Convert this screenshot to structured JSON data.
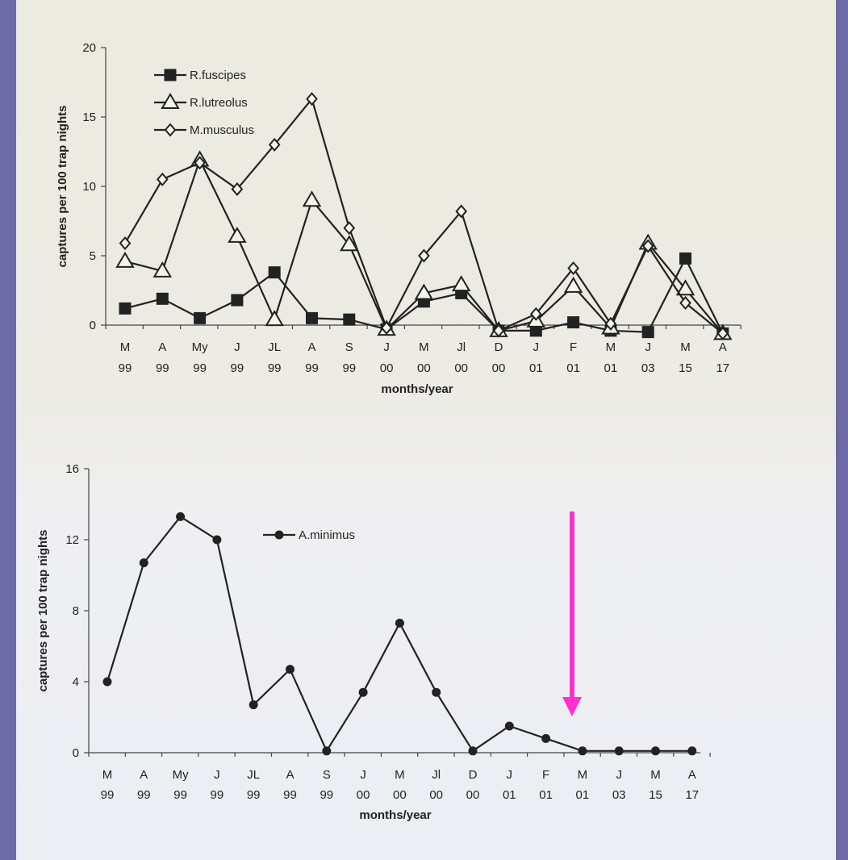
{
  "chart_data": [
    {
      "type": "line",
      "x_categories": [
        [
          "M",
          "99"
        ],
        [
          "A",
          "99"
        ],
        [
          "My",
          "99"
        ],
        [
          "J",
          "99"
        ],
        [
          "JL",
          "99"
        ],
        [
          "A",
          "99"
        ],
        [
          "S",
          "99"
        ],
        [
          "J",
          "00"
        ],
        [
          "M",
          "00"
        ],
        [
          "Jl",
          "00"
        ],
        [
          "D",
          "00"
        ],
        [
          "J",
          "01"
        ],
        [
          "F",
          "01"
        ],
        [
          "M",
          "01"
        ],
        [
          "J",
          "03"
        ],
        [
          "M",
          "15"
        ],
        [
          "A",
          "17"
        ]
      ],
      "xlabel": "months/year",
      "ylabel": "captures per 100 trap nights",
      "ylim": [
        0,
        20
      ],
      "yticks": [
        "0",
        "5",
        "10",
        "15",
        "20"
      ],
      "legend_position": "top-left",
      "series": [
        {
          "name": "R.fuscipes",
          "marker": "square-filled",
          "values": [
            1.2,
            1.9,
            0.5,
            1.8,
            3.8,
            0.5,
            0.4,
            -0.3,
            1.7,
            2.3,
            -0.4,
            -0.4,
            0.2,
            -0.4,
            -0.5,
            4.8,
            -0.6
          ]
        },
        {
          "name": "R.lutreolus",
          "marker": "triangle-open",
          "values": [
            4.6,
            3.9,
            11.9,
            6.4,
            0.4,
            9.0,
            5.8,
            -0.3,
            2.3,
            2.9,
            -0.4,
            0.3,
            2.8,
            -0.2,
            5.9,
            2.6,
            -0.6
          ]
        },
        {
          "name": "M.musculus",
          "marker": "diamond-open",
          "values": [
            5.9,
            10.5,
            11.7,
            9.8,
            13.0,
            16.3,
            7.0,
            -0.2,
            5.0,
            8.2,
            -0.4,
            0.8,
            4.1,
            0.1,
            5.7,
            1.6,
            -0.6
          ]
        }
      ]
    },
    {
      "type": "line",
      "x_categories": [
        [
          "M",
          "99"
        ],
        [
          "A",
          "99"
        ],
        [
          "My",
          "99"
        ],
        [
          "J",
          "99"
        ],
        [
          "JL",
          "99"
        ],
        [
          "A",
          "99"
        ],
        [
          "S",
          "99"
        ],
        [
          "J",
          "00"
        ],
        [
          "M",
          "00"
        ],
        [
          "Jl",
          "00"
        ],
        [
          "D",
          "00"
        ],
        [
          "J",
          "01"
        ],
        [
          "F",
          "01"
        ],
        [
          "M",
          "01"
        ],
        [
          "J",
          "03"
        ],
        [
          "M",
          "15"
        ],
        [
          "A",
          "17"
        ]
      ],
      "xlabel": "months/year",
      "ylabel": "captures per 100 trap nights",
      "ylim": [
        0,
        16
      ],
      "yticks": [
        "0",
        "4",
        "8",
        "12",
        "16"
      ],
      "legend_position": "top-center",
      "series": [
        {
          "name": "A.minimus",
          "marker": "circle-filled",
          "values": [
            4.0,
            10.7,
            13.3,
            12.0,
            2.7,
            4.7,
            0.1,
            3.4,
            7.3,
            3.4,
            0.1,
            1.5,
            0.8,
            0.1,
            0.1,
            0.1,
            0.1
          ]
        }
      ],
      "annotation": {
        "type": "arrow",
        "color": "#ff2fd0",
        "points_to": "M 01"
      }
    }
  ]
}
